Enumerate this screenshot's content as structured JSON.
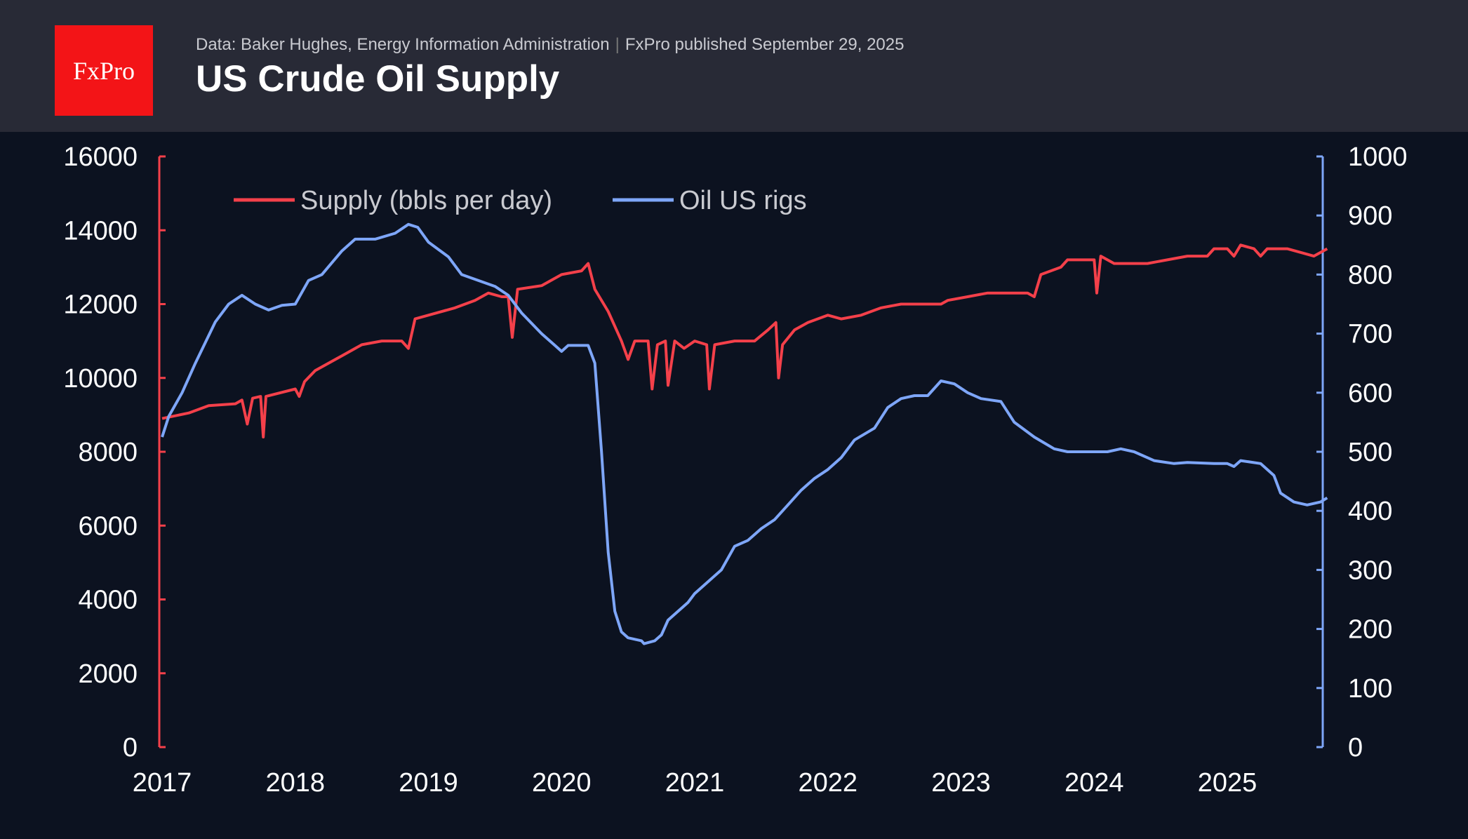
{
  "header": {
    "logo": "FxPro",
    "source": "Data: Baker Hughes, Energy Information Administration",
    "published": "FxPro published September 29, 2025",
    "title": "US Crude Oil Supply"
  },
  "chart_data": {
    "type": "line",
    "title": "US Crude Oil Supply",
    "xlim": [
      2017,
      2025.75
    ],
    "x_ticks": [
      "2017",
      "2018",
      "2019",
      "2020",
      "2021",
      "2022",
      "2023",
      "2024",
      "2025"
    ],
    "y_left": {
      "ylim": [
        0,
        16000
      ],
      "ticks": [
        "0",
        "2000",
        "4000",
        "6000",
        "8000",
        "10000",
        "12000",
        "14000",
        "16000"
      ],
      "color": "#f4404a"
    },
    "y_right": {
      "ylim": [
        0,
        1000
      ],
      "ticks": [
        "0",
        "100",
        "200",
        "300",
        "400",
        "500",
        "600",
        "700",
        "800",
        "900",
        "1000"
      ],
      "color": "#7ea6f8"
    },
    "legend": "top-left",
    "grid": false,
    "series": [
      {
        "name": "Supply (bbls per day)",
        "axis": "left",
        "color": "#f4404a",
        "x": [
          2017.0,
          2017.2,
          2017.35,
          2017.55,
          2017.6,
          2017.64,
          2017.68,
          2017.74,
          2017.76,
          2017.78,
          2018.0,
          2018.03,
          2018.07,
          2018.15,
          2018.35,
          2018.5,
          2018.65,
          2018.8,
          2018.85,
          2018.9,
          2019.0,
          2019.2,
          2019.35,
          2019.45,
          2019.55,
          2019.6,
          2019.63,
          2019.67,
          2019.85,
          2020.0,
          2020.15,
          2020.2,
          2020.25,
          2020.35,
          2020.45,
          2020.5,
          2020.55,
          2020.65,
          2020.68,
          2020.72,
          2020.78,
          2020.8,
          2020.85,
          2020.92,
          2021.0,
          2021.09,
          2021.11,
          2021.15,
          2021.3,
          2021.45,
          2021.55,
          2021.61,
          2021.63,
          2021.66,
          2021.75,
          2021.85,
          2022.0,
          2022.1,
          2022.25,
          2022.4,
          2022.55,
          2022.7,
          2022.85,
          2022.9,
          2023.05,
          2023.2,
          2023.4,
          2023.5,
          2023.55,
          2023.6,
          2023.75,
          2023.8,
          2024.0,
          2024.02,
          2024.05,
          2024.15,
          2024.4,
          2024.55,
          2024.7,
          2024.85,
          2024.9,
          2025.0,
          2025.05,
          2025.1,
          2025.2,
          2025.25,
          2025.3,
          2025.45,
          2025.55,
          2025.65,
          2025.75
        ],
        "values": [
          8900,
          9050,
          9250,
          9300,
          9400,
          8750,
          9450,
          9500,
          8400,
          9500,
          9700,
          9500,
          9900,
          10200,
          10600,
          10900,
          11000,
          11000,
          10800,
          11600,
          11700,
          11900,
          12100,
          12300,
          12200,
          12200,
          11100,
          12400,
          12500,
          12800,
          12900,
          13100,
          12400,
          11800,
          11000,
          10500,
          11000,
          11000,
          9700,
          10900,
          11000,
          9800,
          11000,
          10800,
          11000,
          10900,
          9700,
          10900,
          11000,
          11000,
          11300,
          11500,
          10000,
          10900,
          11300,
          11500,
          11700,
          11600,
          11700,
          11900,
          12000,
          12000,
          12000,
          12100,
          12200,
          12300,
          12300,
          12300,
          12200,
          12800,
          13000,
          13200,
          13200,
          12300,
          13300,
          13100,
          13100,
          13200,
          13300,
          13300,
          13500,
          13500,
          13300,
          13600,
          13500,
          13300,
          13500,
          13500,
          13400,
          13300,
          13500
        ]
      },
      {
        "name": "Oil US rigs",
        "axis": "right",
        "color": "#7ea6f8",
        "x": [
          2017.0,
          2017.05,
          2017.15,
          2017.25,
          2017.4,
          2017.5,
          2017.6,
          2017.7,
          2017.8,
          2017.9,
          2018.0,
          2018.1,
          2018.2,
          2018.35,
          2018.45,
          2018.6,
          2018.75,
          2018.85,
          2018.92,
          2019.0,
          2019.15,
          2019.25,
          2019.5,
          2019.6,
          2019.7,
          2019.85,
          2019.95,
          2020.0,
          2020.05,
          2020.1,
          2020.2,
          2020.25,
          2020.3,
          2020.35,
          2020.4,
          2020.45,
          2020.5,
          2020.6,
          2020.62,
          2020.7,
          2020.75,
          2020.8,
          2020.95,
          2021.0,
          2021.1,
          2021.2,
          2021.3,
          2021.4,
          2021.5,
          2021.6,
          2021.7,
          2021.8,
          2021.9,
          2022.0,
          2022.1,
          2022.2,
          2022.35,
          2022.45,
          2022.55,
          2022.65,
          2022.75,
          2022.85,
          2022.95,
          2023.05,
          2023.15,
          2023.3,
          2023.4,
          2023.55,
          2023.7,
          2023.8,
          2024.0,
          2024.1,
          2024.2,
          2024.3,
          2024.45,
          2024.6,
          2024.7,
          2024.9,
          2025.0,
          2025.05,
          2025.1,
          2025.25,
          2025.35,
          2025.4,
          2025.5,
          2025.6,
          2025.7,
          2025.75
        ],
        "values": [
          525,
          560,
          600,
          650,
          720,
          750,
          765,
          750,
          740,
          748,
          750,
          790,
          800,
          840,
          860,
          860,
          870,
          885,
          880,
          855,
          830,
          800,
          780,
          765,
          735,
          700,
          680,
          670,
          680,
          680,
          680,
          650,
          500,
          330,
          230,
          195,
          185,
          180,
          175,
          180,
          190,
          215,
          245,
          260,
          280,
          300,
          340,
          350,
          370,
          385,
          410,
          435,
          455,
          470,
          490,
          520,
          540,
          575,
          590,
          595,
          595,
          620,
          615,
          600,
          590,
          585,
          550,
          525,
          505,
          500,
          500,
          500,
          505,
          500,
          485,
          480,
          482,
          480,
          480,
          475,
          485,
          480,
          460,
          430,
          415,
          410,
          415,
          422
        ]
      }
    ]
  }
}
